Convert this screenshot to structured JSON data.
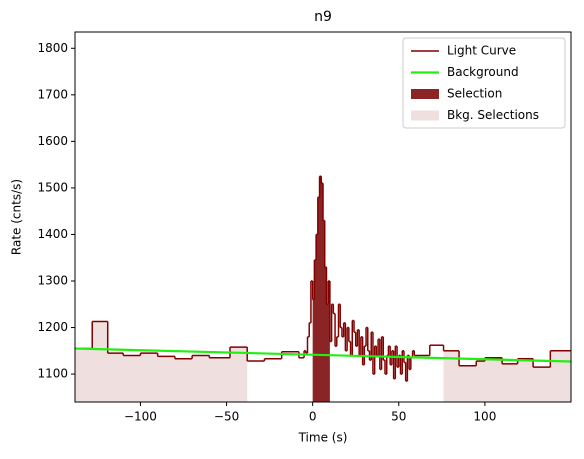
{
  "chart_data": {
    "type": "step",
    "title": "n9",
    "x_label": "Time (s)",
    "y_label": "Rate (cnts/s)",
    "xlim": [
      -138,
      150
    ],
    "ylim": [
      1040,
      1835
    ],
    "xticks": [
      {
        "value": -100,
        "label": "−100"
      },
      {
        "value": -50,
        "label": "−50"
      },
      0,
      50,
      100
    ],
    "yticks": [
      1100,
      1200,
      1300,
      1400,
      1500,
      1600,
      1700,
      1800
    ],
    "legend": "upper right",
    "series": [
      {
        "name": "Light Curve",
        "color": "#800000",
        "x": [
          -138,
          -128,
          -119,
          -110,
          -100,
          -90,
          -80,
          -70,
          -60,
          -48,
          -38,
          -28,
          -18,
          -8,
          -5,
          -4,
          -3,
          -2,
          -1,
          0,
          1,
          2,
          3,
          4,
          5,
          6,
          7,
          8,
          9,
          10,
          11,
          12,
          13,
          14,
          15,
          16,
          17,
          18,
          19,
          20,
          21,
          22,
          23,
          24,
          25,
          26,
          27,
          28,
          29,
          30,
          31,
          32,
          33,
          34,
          35,
          36,
          37,
          38,
          39,
          40,
          41,
          42,
          43,
          44,
          45,
          46,
          47,
          48,
          49,
          50,
          51,
          52,
          53,
          54,
          55,
          56,
          57,
          58,
          59,
          68,
          76,
          85,
          95,
          100,
          110,
          119,
          128,
          138
        ],
        "values": [
          1155,
          1213,
          1145,
          1140,
          1145,
          1138,
          1133,
          1140,
          1135,
          1158,
          1128,
          1133,
          1148,
          1135,
          1150,
          1145,
          1180,
          1210,
          1300,
          1260,
          1345,
          1400,
          1480,
          1525,
          1510,
          1430,
          1330,
          1250,
          1300,
          1170,
          1250,
          1230,
          1160,
          1180,
          1250,
          1200,
          1180,
          1210,
          1150,
          1200,
          1170,
          1140,
          1215,
          1190,
          1160,
          1195,
          1140,
          1180,
          1120,
          1160,
          1200,
          1150,
          1130,
          1190,
          1100,
          1160,
          1140,
          1175,
          1110,
          1180,
          1130,
          1100,
          1140,
          1160,
          1120,
          1150,
          1090,
          1160,
          1115,
          1140,
          1100,
          1150,
          1125,
          1085,
          1140,
          1110,
          1135,
          1150,
          1140,
          1162,
          1150,
          1118,
          1128,
          1135,
          1122,
          1133,
          1115,
          1150
        ]
      },
      {
        "name": "Background",
        "color": "#22ee11",
        "x": [
          -138,
          150
        ],
        "values": [
          1155,
          1127
        ]
      }
    ],
    "selection": {
      "name": "Selection",
      "color": "#8b2525",
      "range": [
        0,
        10
      ]
    },
    "bkg_selections": {
      "name": "Bkg. Selections",
      "color": "#efdfdf",
      "ranges": [
        [
          -138,
          -38
        ],
        [
          76,
          150
        ]
      ]
    }
  }
}
